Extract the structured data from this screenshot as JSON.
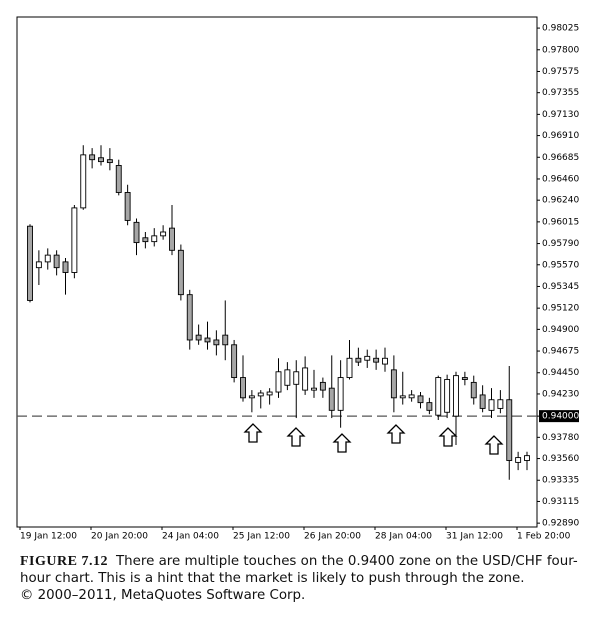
{
  "chart_data": {
    "type": "candlestick",
    "categories": [
      "19 Jan 12:00",
      null,
      null,
      null,
      null,
      null,
      null,
      null,
      "20 Jan 20:00",
      null,
      null,
      null,
      null,
      null,
      null,
      null,
      "24 Jan 04:00",
      null,
      null,
      null,
      null,
      null,
      null,
      null,
      "25 Jan 12:00",
      null,
      null,
      null,
      null,
      null,
      null,
      null,
      "26 Jan 20:00",
      null,
      null,
      null,
      null,
      null,
      null,
      null,
      "28 Jan 04:00",
      null,
      null,
      null,
      null,
      null,
      null,
      null,
      "31 Jan 12:00",
      null,
      null,
      null,
      null,
      null,
      null,
      null,
      "1 Feb 20:00"
    ],
    "open": [
      0.9597,
      0.9554,
      0.956,
      0.9567,
      0.956,
      0.9549,
      0.9616,
      0.9671,
      0.9668,
      0.9666,
      0.966,
      0.9632,
      0.9601,
      0.9585,
      0.9581,
      0.9587,
      0.9595,
      0.9572,
      0.9526,
      0.9484,
      0.9481,
      0.9479,
      0.9484,
      0.9474,
      0.944,
      0.9419,
      0.9421,
      0.9422,
      0.9425,
      0.9432,
      0.9433,
      0.9427,
      0.9427,
      0.9435,
      0.9429,
      0.9406,
      0.944,
      0.946,
      0.9458,
      0.946,
      0.9454,
      0.9448,
      0.9419,
      0.9419,
      0.9421,
      0.9414,
      0.9401,
      0.9404,
      0.94,
      0.944,
      0.9435,
      0.9422,
      0.9406,
      0.9408,
      0.9417,
      0.9352,
      0.9354
    ],
    "high": [
      0.9599,
      0.9572,
      0.9574,
      0.9572,
      0.9564,
      0.9619,
      0.9681,
      0.9678,
      0.9681,
      0.9678,
      0.9666,
      0.964,
      0.9605,
      0.9591,
      0.9595,
      0.9598,
      0.9619,
      0.9578,
      0.9531,
      0.9495,
      0.9498,
      0.9489,
      0.952,
      0.9479,
      0.9463,
      0.9427,
      0.9427,
      0.9429,
      0.946,
      0.9456,
      0.9458,
      0.9462,
      0.9448,
      0.944,
      0.9463,
      0.9458,
      0.9479,
      0.9471,
      0.9469,
      0.9469,
      0.9471,
      0.9463,
      0.9446,
      0.9427,
      0.9425,
      0.9419,
      0.9442,
      0.9443,
      0.9446,
      0.9446,
      0.9442,
      0.9432,
      0.9429,
      0.9427,
      0.9452,
      0.9363,
      0.9363
    ],
    "low": [
      0.9518,
      0.9536,
      0.9552,
      0.9546,
      0.9526,
      0.9543,
      0.9614,
      0.9657,
      0.966,
      0.9655,
      0.9629,
      0.9598,
      0.9567,
      0.9574,
      0.9576,
      0.9583,
      0.9567,
      0.952,
      0.9469,
      0.9474,
      0.9469,
      0.9463,
      0.9458,
      0.9435,
      0.9415,
      0.9404,
      0.9408,
      0.9412,
      0.9419,
      0.9427,
      0.9398,
      0.9422,
      0.9419,
      0.9419,
      0.9398,
      0.9388,
      0.9438,
      0.9452,
      0.945,
      0.9448,
      0.9446,
      0.9404,
      0.9412,
      0.9415,
      0.9408,
      0.9402,
      0.9396,
      0.9398,
      0.937,
      0.9432,
      0.9412,
      0.9404,
      0.9398,
      0.9403,
      0.9334,
      0.9344,
      0.9344
    ],
    "close": [
      0.952,
      0.956,
      0.9567,
      0.9554,
      0.9549,
      0.9616,
      0.9671,
      0.9666,
      0.9664,
      0.9663,
      0.9632,
      0.9603,
      0.958,
      0.9581,
      0.9587,
      0.9591,
      0.9572,
      0.9526,
      0.9479,
      0.9479,
      0.9477,
      0.9474,
      0.9474,
      0.944,
      0.9419,
      0.9421,
      0.9424,
      0.9425,
      0.9446,
      0.9448,
      0.9446,
      0.945,
      0.9429,
      0.9427,
      0.9406,
      0.944,
      0.946,
      0.9456,
      0.9462,
      0.9456,
      0.946,
      0.9419,
      0.9421,
      0.9422,
      0.9414,
      0.9406,
      0.944,
      0.9438,
      0.9442,
      0.9438,
      0.9419,
      0.9408,
      0.9417,
      0.9417,
      0.9354,
      0.9357,
      0.9359
    ],
    "up_color": "#ffffff",
    "down_color": "#a6a6a6",
    "ylim": [
      0.9285,
      0.9814
    ],
    "yticks": [
      0.98025,
      {
        "value": 0.978,
        "label": "0.97800"
      },
      0.97575,
      0.97355,
      {
        "value": 0.9713,
        "label": "0.97130"
      },
      {
        "value": 0.9691,
        "label": "0.96910"
      },
      0.96685,
      {
        "value": 0.9646,
        "label": "0.96460"
      },
      {
        "value": 0.9624,
        "label": "0.96240"
      },
      0.96015,
      {
        "value": 0.9579,
        "label": "0.95790"
      },
      {
        "value": 0.9557,
        "label": "0.95570"
      },
      0.95345,
      {
        "value": 0.9512,
        "label": "0.95120"
      },
      {
        "value": 0.949,
        "label": "0.94900"
      },
      0.94675,
      {
        "value": 0.9445,
        "label": "0.94450"
      },
      {
        "value": 0.9423,
        "label": "0.94230"
      },
      {
        "value": 0.94,
        "label": "0.94000"
      },
      {
        "value": 0.9378,
        "label": "0.93780"
      },
      {
        "value": 0.9356,
        "label": "0.93560"
      },
      0.93335,
      0.93115,
      {
        "value": 0.9289,
        "label": "0.92890"
      }
    ],
    "hline": 0.94,
    "caption": {
      "label": "FIGURE 7.12",
      "text": "There are multiple touches on the 0.9400 zone on the USD/CHF four-hour chart. This is a hint that the market is likely to push through the zone.",
      "copyright": "© 2000–2011, MetaQuotes Software Corp."
    }
  }
}
